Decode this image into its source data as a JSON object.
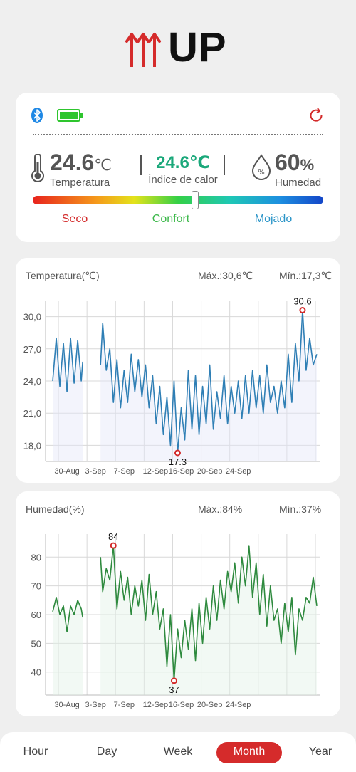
{
  "brand": {
    "logo_text": "UP"
  },
  "status": {
    "temperature": {
      "value": "24.6",
      "unit": "℃",
      "label": "Temperatura"
    },
    "heat_index": {
      "value": "24.6℃",
      "label": "Índice de calor"
    },
    "humidity": {
      "value": "60",
      "unit": "%",
      "label": "Humedad"
    },
    "comfort_labels": {
      "dry": "Seco",
      "comfort": "Confort",
      "wet": "Mojado"
    },
    "comfort_level": 0.56,
    "icons": [
      "bluetooth-icon",
      "battery-full-icon",
      "refresh-icon",
      "thermometer-icon",
      "humidity-drop-icon"
    ],
    "colors": {
      "heat_index": "#1aa87a",
      "dry": "#d32a2a",
      "comfort": "#3cb84a",
      "wet": "#2b95c8",
      "battery": "#2ec52e",
      "bluetooth": "#1e88e5"
    }
  },
  "temp_chart": {
    "title": "Temperatura(℃)",
    "max_label": "Máx.:30,6℃",
    "min_label": "Mín.:17,3℃",
    "y_tick_labels": [
      "30,0",
      "27,0",
      "24,0",
      "21,0",
      "18,0"
    ],
    "x_tick_labels": [
      "30-Aug",
      "3-Sep",
      "7-Sep",
      "12-Sep",
      "16-Sep",
      "20-Sep",
      "24-Sep"
    ],
    "max_annotation": "30.6",
    "min_annotation": "17.3",
    "color": "#2f7fb5"
  },
  "hum_chart": {
    "title": "Humedad(%)",
    "max_label": "Máx.:84%",
    "min_label": "Mín.:37%",
    "y_tick_labels": [
      "80",
      "70",
      "60",
      "50",
      "40"
    ],
    "x_tick_labels": [
      "30-Aug",
      "3-Sep",
      "7-Sep",
      "12-Sep",
      "16-Sep",
      "20-Sep",
      "24-Sep"
    ],
    "max_annotation": "84",
    "min_annotation": "37",
    "color": "#2e8a3e"
  },
  "chart_data": [
    {
      "type": "line",
      "title": "Temperatura(℃)",
      "ylabel": "",
      "ylim": [
        16.5,
        31.5
      ],
      "grid": true,
      "x_labels": [
        "30-Aug",
        "3-Sep",
        "7-Sep",
        "12-Sep",
        "16-Sep",
        "20-Sep",
        "24-Sep"
      ],
      "series": [
        {
          "segments": [
            {
              "x": [
                28.0,
                28.5,
                29.0,
                29.5,
                30.0,
                30.5,
                31.0,
                31.5,
                32.0,
                32.2
              ],
              "y": [
                24.0,
                28.0,
                23.5,
                27.5,
                23.0,
                28.0,
                23.8,
                27.8,
                24.0,
                25.8
              ]
            },
            {
              "x": [
                34.7,
                35.0,
                35.5,
                36.0,
                36.5,
                37.0,
                37.5,
                38.0,
                38.5,
                39.0,
                39.5,
                40.0,
                40.5,
                41.0,
                41.5,
                42.0,
                42.5,
                43.0,
                43.5,
                44.0,
                44.5,
                45.0,
                45.5,
                46.0,
                46.5,
                47.0,
                47.5,
                48.0,
                48.5,
                49.0,
                49.5,
                50.0,
                50.5,
                51.0,
                51.5,
                52.0,
                52.5,
                53.0,
                53.5,
                54.0,
                54.5,
                55.0,
                55.5,
                56.0,
                56.5,
                57.0,
                57.5,
                58.0,
                58.5,
                59.0,
                59.5,
                60.0,
                60.5,
                61.0,
                61.5,
                62.0,
                62.5,
                63.0,
                63.5,
                64.0,
                64.5,
                65.0
              ],
              "y": [
                25.5,
                29.4,
                25.0,
                27.0,
                22.0,
                26.0,
                21.5,
                25.0,
                22.0,
                26.5,
                23.0,
                26.0,
                22.5,
                25.5,
                21.5,
                24.5,
                20.0,
                23.5,
                19.0,
                22.5,
                18.0,
                24.0,
                17.3,
                21.5,
                18.5,
                25.0,
                19.5,
                24.5,
                19.0,
                23.5,
                20.0,
                25.5,
                19.5,
                23.0,
                20.5,
                24.5,
                20.0,
                23.5,
                21.0,
                24.0,
                20.5,
                24.5,
                21.0,
                25.0,
                21.5,
                24.5,
                21.0,
                25.5,
                22.0,
                23.5,
                21.0,
                24.0,
                21.5,
                26.5,
                22.0,
                27.5,
                24.0,
                30.6,
                25.0,
                28.0,
                25.5,
                26.5
              ]
            }
          ]
        }
      ],
      "annotations": [
        {
          "label": "30.6",
          "x": 63.0,
          "y": 30.6
        },
        {
          "label": "17.3",
          "x": 45.5,
          "y": 17.3
        }
      ]
    },
    {
      "type": "line",
      "title": "Humedad(%)",
      "ylabel": "",
      "ylim": [
        32,
        88
      ],
      "grid": true,
      "x_labels": [
        "30-Aug",
        "3-Sep",
        "7-Sep",
        "12-Sep",
        "16-Sep",
        "20-Sep",
        "24-Sep"
      ],
      "series": [
        {
          "segments": [
            {
              "x": [
                28.0,
                28.5,
                29.0,
                29.5,
                30.0,
                30.5,
                31.0,
                31.5,
                32.0,
                32.2
              ],
              "y": [
                61,
                66,
                60,
                63,
                54,
                63,
                60,
                65,
                62,
                59
              ]
            },
            {
              "x": [
                34.7,
                35.0,
                35.5,
                36.0,
                36.5,
                37.0,
                37.5,
                38.0,
                38.5,
                39.0,
                39.5,
                40.0,
                40.5,
                41.0,
                41.5,
                42.0,
                42.5,
                43.0,
                43.5,
                44.0,
                44.5,
                45.0,
                45.5,
                46.0,
                46.5,
                47.0,
                47.5,
                48.0,
                48.5,
                49.0,
                49.5,
                50.0,
                50.5,
                51.0,
                51.5,
                52.0,
                52.5,
                53.0,
                53.5,
                54.0,
                54.5,
                55.0,
                55.5,
                56.0,
                56.5,
                57.0,
                57.5,
                58.0,
                58.5,
                59.0,
                59.5,
                60.0,
                60.5,
                61.0,
                61.5,
                62.0,
                62.5,
                63.0,
                63.5,
                64.0,
                64.5,
                65.0
              ],
              "y": [
                80,
                68,
                76,
                72,
                84,
                62,
                75,
                65,
                73,
                60,
                70,
                63,
                72,
                58,
                74,
                60,
                68,
                55,
                62,
                42,
                60,
                37,
                55,
                45,
                58,
                48,
                62,
                44,
                64,
                50,
                66,
                55,
                70,
                58,
                72,
                62,
                75,
                68,
                78,
                64,
                80,
                70,
                84,
                66,
                78,
                60,
                74,
                56,
                70,
                58,
                62,
                50,
                64,
                54,
                66,
                46,
                62,
                58,
                66,
                64,
                73,
                63
              ]
            }
          ]
        }
      ],
      "annotations": [
        {
          "label": "84",
          "x": 36.5,
          "y": 84
        },
        {
          "label": "37",
          "x": 45.0,
          "y": 37
        }
      ]
    }
  ],
  "tabs": [
    {
      "label": "Hour",
      "active": false
    },
    {
      "label": "Day",
      "active": false
    },
    {
      "label": "Week",
      "active": false
    },
    {
      "label": "Month",
      "active": true
    },
    {
      "label": "Year",
      "active": false
    }
  ]
}
